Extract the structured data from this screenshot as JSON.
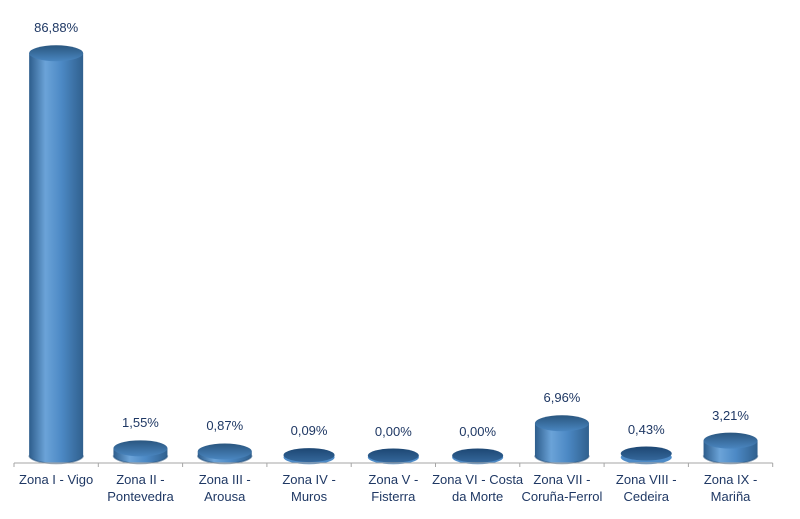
{
  "chart_data": {
    "type": "bar",
    "subtype": "3d-cylinder",
    "title": "",
    "xlabel": "",
    "ylabel": "",
    "grid": false,
    "legend": null,
    "ylim": [
      0,
      90
    ],
    "value_axis_visible": false,
    "categories": [
      "Zona I - Vigo",
      "Zona II - Pontevedra",
      "Zona III - Arousa",
      "Zona IV - Muros",
      "Zona V - Fisterra",
      "Zona VI - Costa da Morte",
      "Zona VII - Coruña-Ferrol",
      "Zona VIII - Cedeira",
      "Zona IX - Mariña"
    ],
    "category_label_lines": [
      [
        "Zona I - Vigo"
      ],
      [
        "Zona II -",
        "Pontevedra"
      ],
      [
        "Zona III -",
        "Arousa"
      ],
      [
        "Zona IV -",
        "Muros"
      ],
      [
        "Zona V -",
        "Fisterra"
      ],
      [
        "Zona VI - Costa",
        "da Morte"
      ],
      [
        "Zona VII -",
        "Coruña-Ferrol"
      ],
      [
        "Zona VIII -",
        "Cedeira"
      ],
      [
        "Zona IX -",
        "Mariña"
      ]
    ],
    "values": [
      86.88,
      1.55,
      0.87,
      0.09,
      0.0,
      0.0,
      6.96,
      0.43,
      3.21
    ],
    "value_labels": [
      "86,88%",
      "1,55%",
      "0,87%",
      "0,09%",
      "0,00%",
      "0,00%",
      "6,96%",
      "0,43%",
      "3,21%"
    ],
    "colors": {
      "side_edge_left": "#2d5d8c",
      "side_light": "#6ba3d8",
      "side_mid": "#4c89c5",
      "side_edge_right": "#30608e",
      "top_back": "#2a567f",
      "top_front": "#4a86c0",
      "flat_dark": "#1d4773",
      "flat_mid": "#35689c",
      "bottom_rim": "#4e8bc7",
      "bottom_shadow": "#234f7a",
      "label_text": "#1f3864",
      "axis_line": "#a6a6a6",
      "background": "#ffffff"
    }
  }
}
